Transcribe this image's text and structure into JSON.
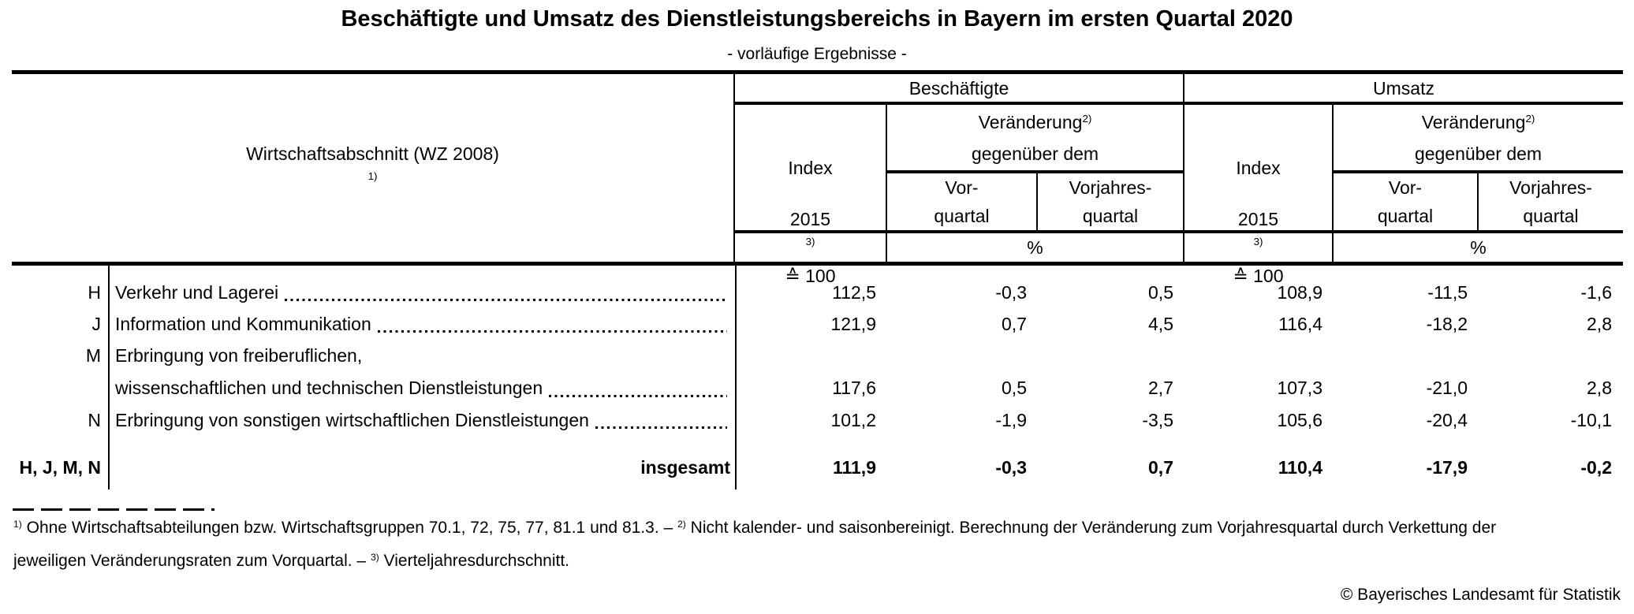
{
  "title": "Beschäftigte und Umsatz des Dienstleistungsbereichs in Bayern im ersten Quartal 2020",
  "subtitle": "- vorläufige Ergebnisse -",
  "table": {
    "stub_header_segments": [
      {
        "t": "Wirtschaftsabschnitt (WZ 2008)"
      },
      {
        "sup": "1)"
      }
    ],
    "group_headers": {
      "employment": "Beschäftigte",
      "turnover": "Umsatz"
    },
    "col_headers": {
      "index": "Index",
      "change_segments": [
        {
          "t": "Veränderung"
        },
        {
          "sup": "2)"
        }
      ],
      "change_line2": "gegenüber dem",
      "prev_quarter_line1": "Vor-",
      "prev_quarter_line2": "quartal",
      "prev_year_quarter_line1": "Vorjahres-",
      "prev_year_quarter_line2": "quartal"
    },
    "units": {
      "index_segments": [
        {
          "t": "2015"
        },
        {
          "sup": "3)"
        },
        {
          "t": " ≙ 100"
        }
      ],
      "percent": "%"
    },
    "rows": [
      {
        "code": "H",
        "label": "Verkehr und Lagerei",
        "values": [
          "112,5",
          "-0,3",
          "0,5",
          "108,9",
          "-11,5",
          "-1,6"
        ]
      },
      {
        "code": "J",
        "label": "Information und Kommunikation",
        "values": [
          "121,9",
          "0,7",
          "4,5",
          "116,4",
          "-18,2",
          "2,8"
        ]
      },
      {
        "code": "M",
        "label_line1": "Erbringung von freiberuflichen,",
        "label_line2": "wissenschaftlichen und technischen Dienstleistungen",
        "values": [
          "117,6",
          "0,5",
          "2,7",
          "107,3",
          "-21,0",
          "2,8"
        ]
      },
      {
        "code": "N",
        "label": "Erbringung von sonstigen wirtschaftlichen Dienstleistungen",
        "values": [
          "101,2",
          "-1,9",
          "-3,5",
          "105,6",
          "-20,4",
          "-10,1"
        ]
      }
    ],
    "total_row": {
      "code": "H, J, M, N",
      "label": "insgesamt",
      "values": [
        "111,9",
        "-0,3",
        "0,7",
        "110,4",
        "-17,9",
        "-0,2"
      ]
    }
  },
  "footnotes": {
    "line1_segments": [
      {
        "sup": "1)"
      },
      {
        "t": " Ohne Wirtschaftsabteilungen bzw. Wirtschaftsgruppen  70.1, 72, 75, 77, 81.1 und 81.3. – "
      },
      {
        "sup": "2)"
      },
      {
        "t": " Nicht kalender- und saisonbereinigt. Berechnung der Veränderung zum Vorjahresquartal durch Verkettung der"
      }
    ],
    "line2_segments": [
      {
        "t": "jeweiligen Veränderungsraten zum Vorquartal. – "
      },
      {
        "sup": "3)"
      },
      {
        "t": " Vierteljahresdurchschnitt."
      }
    ]
  },
  "copyright": "© Bayerisches Landesamt für Statistik"
}
